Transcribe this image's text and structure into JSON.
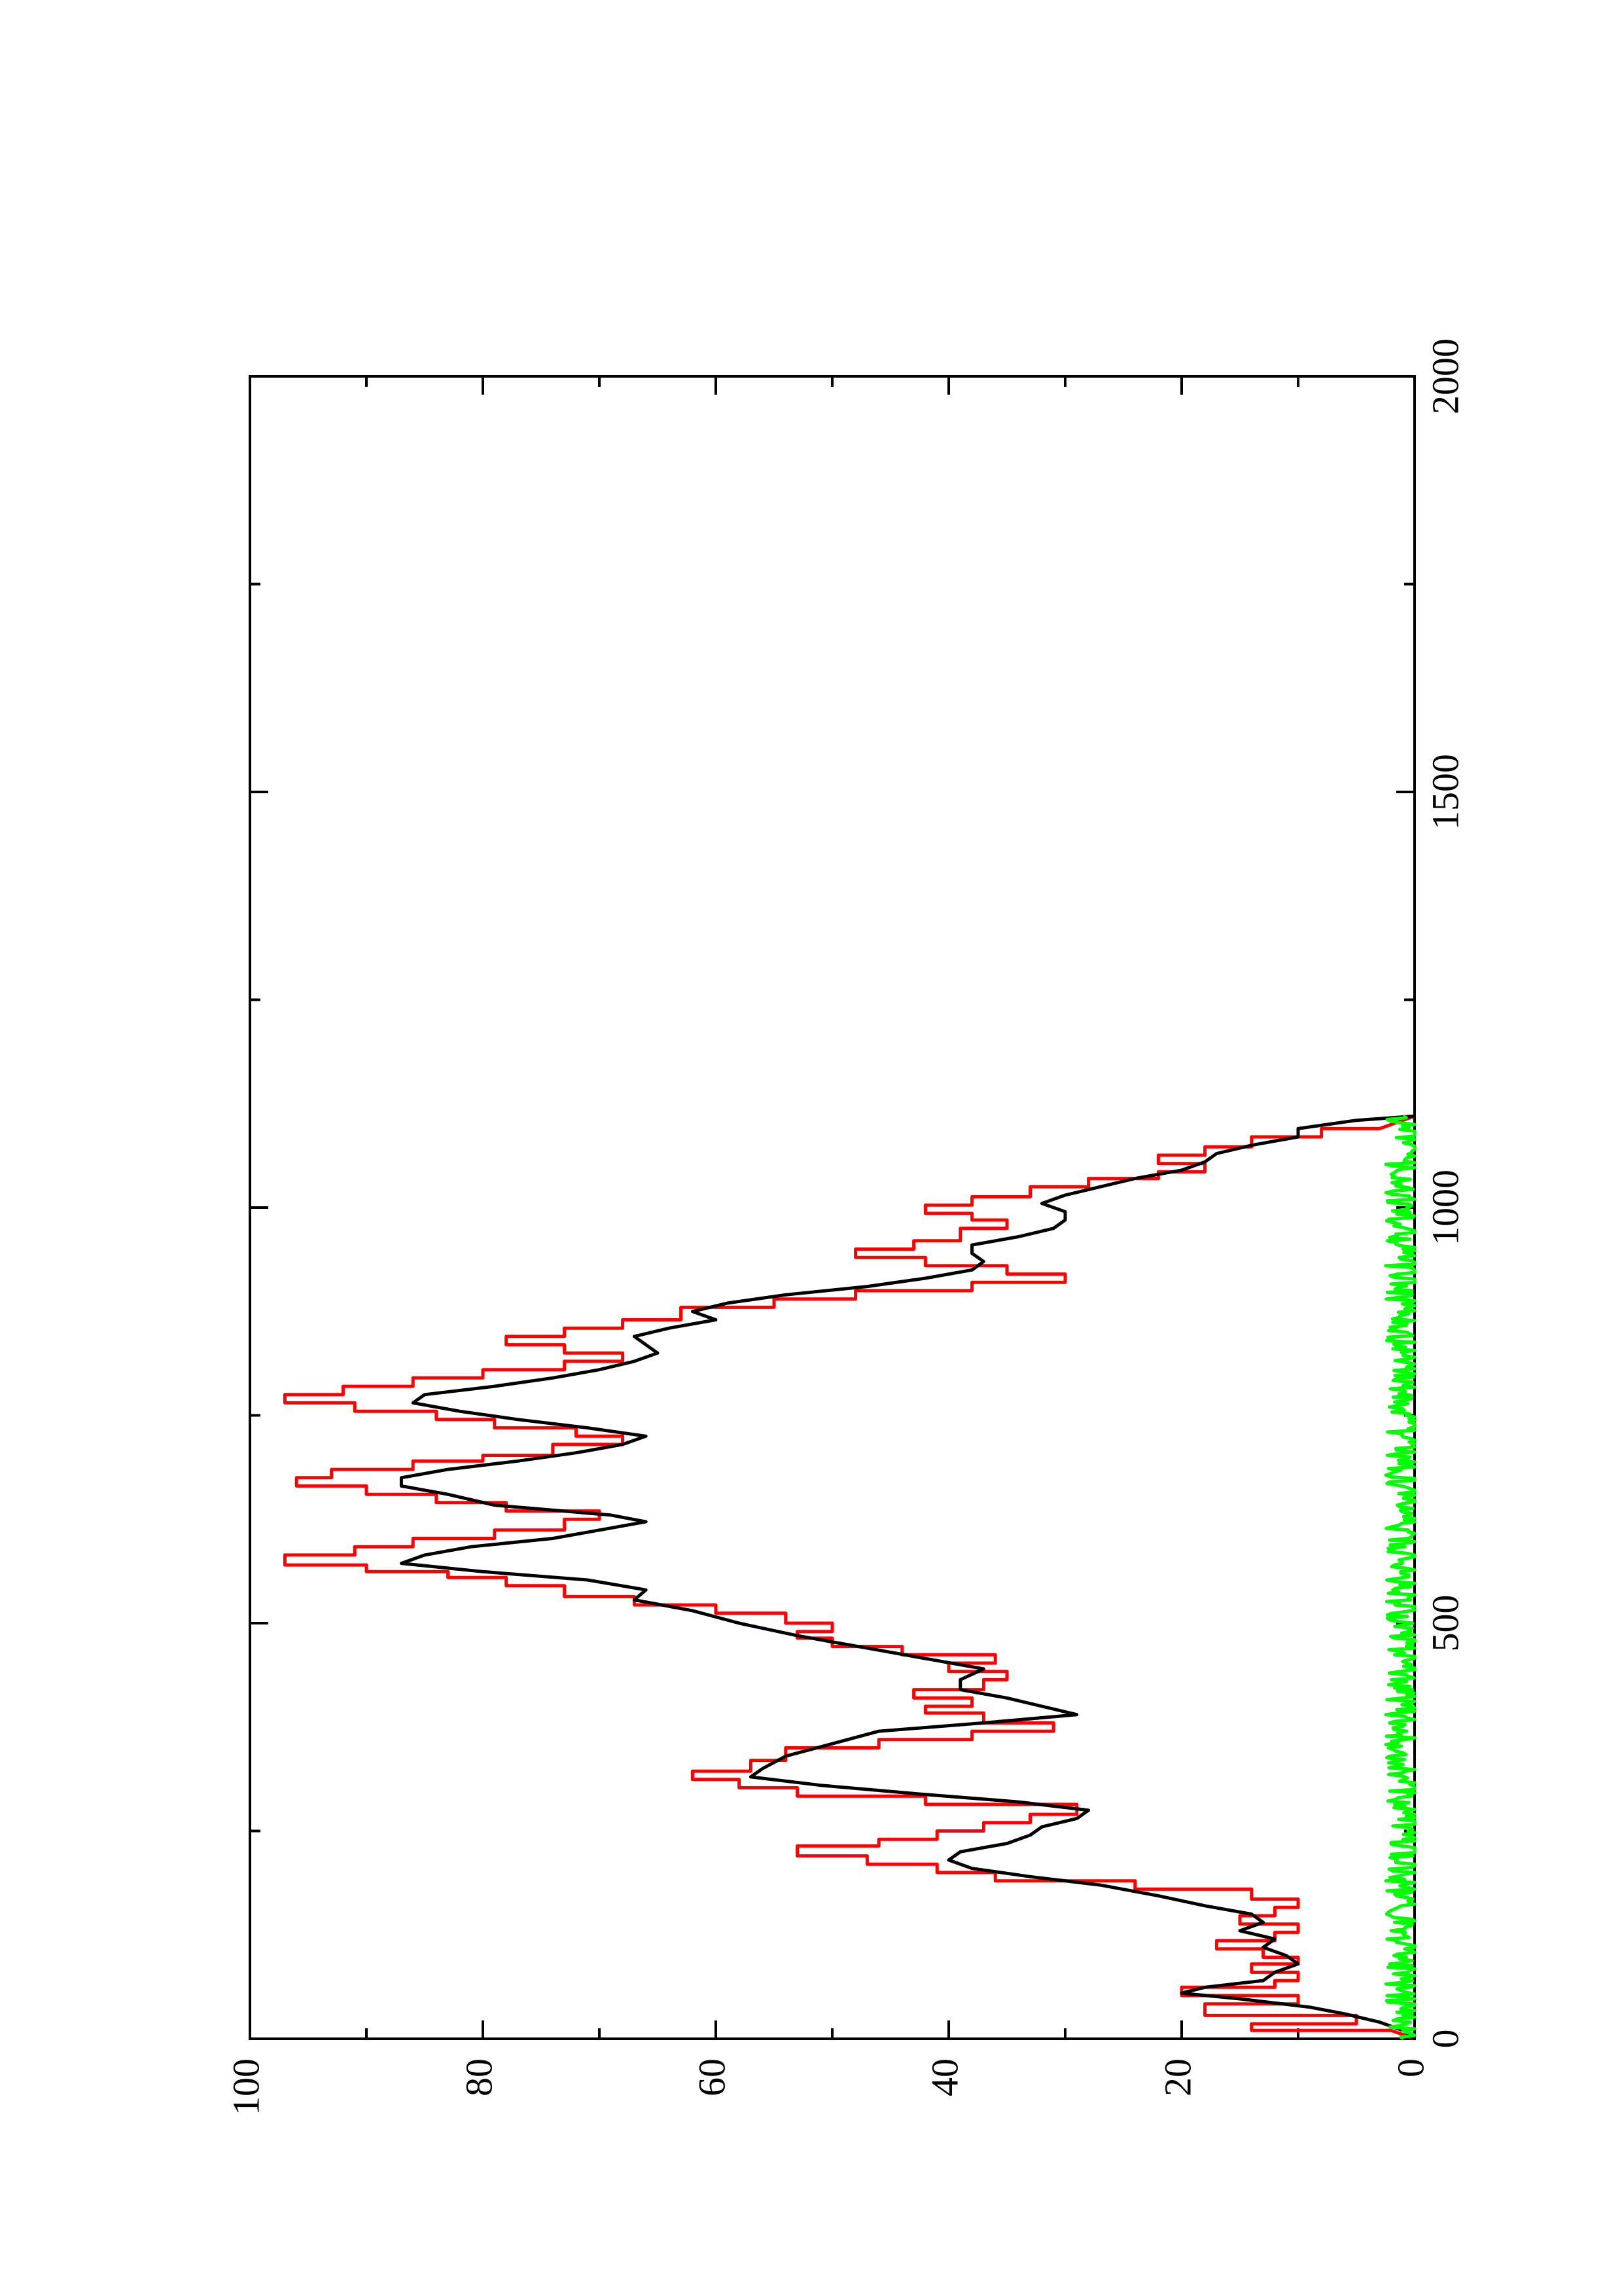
{
  "chart_data": {
    "type": "line",
    "orientation": "rotated-90-clockwise",
    "xlim": [
      0,
      2000
    ],
    "ylim": [
      0,
      100
    ],
    "x_ticks": [
      0,
      500,
      1000,
      1500,
      2000
    ],
    "x_tick_labels": [
      "0",
      "500",
      "1000",
      "1500",
      "2000"
    ],
    "y_ticks": [
      0,
      20,
      40,
      60,
      80,
      100
    ],
    "y_tick_labels": [
      "0",
      "20",
      "40",
      "60",
      "80",
      "100"
    ],
    "grid": false,
    "legend": "none",
    "series": [
      {
        "color": "#ff0000",
        "points": [
          [
            0,
            0
          ],
          [
            10,
            2
          ],
          [
            10,
            14
          ],
          [
            18,
            14
          ],
          [
            18,
            5
          ],
          [
            28,
            5
          ],
          [
            28,
            18
          ],
          [
            42,
            18
          ],
          [
            42,
            10
          ],
          [
            52,
            10
          ],
          [
            52,
            20
          ],
          [
            62,
            20
          ],
          [
            62,
            12
          ],
          [
            70,
            12
          ],
          [
            70,
            10
          ],
          [
            80,
            10
          ],
          [
            80,
            14
          ],
          [
            90,
            14
          ],
          [
            90,
            10
          ],
          [
            98,
            10
          ],
          [
            98,
            13
          ],
          [
            108,
            13
          ],
          [
            108,
            17
          ],
          [
            118,
            17
          ],
          [
            118,
            12
          ],
          [
            128,
            12
          ],
          [
            128,
            10
          ],
          [
            138,
            10
          ],
          [
            138,
            15
          ],
          [
            148,
            15
          ],
          [
            148,
            12
          ],
          [
            158,
            12
          ],
          [
            158,
            10
          ],
          [
            168,
            10
          ],
          [
            168,
            14
          ],
          [
            180,
            14
          ],
          [
            180,
            24
          ],
          [
            190,
            24
          ],
          [
            190,
            36
          ],
          [
            200,
            36
          ],
          [
            200,
            41
          ],
          [
            210,
            41
          ],
          [
            210,
            47
          ],
          [
            220,
            47
          ],
          [
            220,
            53
          ],
          [
            232,
            53
          ],
          [
            232,
            46
          ],
          [
            240,
            46
          ],
          [
            240,
            41
          ],
          [
            250,
            41
          ],
          [
            250,
            37
          ],
          [
            260,
            37
          ],
          [
            260,
            33
          ],
          [
            270,
            33
          ],
          [
            270,
            29
          ],
          [
            282,
            29
          ],
          [
            282,
            42
          ],
          [
            292,
            42
          ],
          [
            292,
            53
          ],
          [
            302,
            53
          ],
          [
            302,
            58
          ],
          [
            312,
            58
          ],
          [
            312,
            62
          ],
          [
            322,
            62
          ],
          [
            322,
            57
          ],
          [
            335,
            57
          ],
          [
            335,
            54
          ],
          [
            350,
            54
          ],
          [
            350,
            46
          ],
          [
            360,
            46
          ],
          [
            360,
            38
          ],
          [
            370,
            38
          ],
          [
            370,
            31
          ],
          [
            380,
            31
          ],
          [
            380,
            37
          ],
          [
            392,
            37
          ],
          [
            392,
            42
          ],
          [
            400,
            42
          ],
          [
            400,
            38
          ],
          [
            410,
            38
          ],
          [
            410,
            43
          ],
          [
            420,
            43
          ],
          [
            420,
            37
          ],
          [
            432,
            37
          ],
          [
            432,
            35
          ],
          [
            442,
            35
          ],
          [
            442,
            40
          ],
          [
            452,
            40
          ],
          [
            452,
            36
          ],
          [
            462,
            36
          ],
          [
            462,
            44
          ],
          [
            472,
            44
          ],
          [
            472,
            50
          ],
          [
            482,
            50
          ],
          [
            482,
            53
          ],
          [
            490,
            53
          ],
          [
            490,
            50
          ],
          [
            500,
            50
          ],
          [
            500,
            54
          ],
          [
            512,
            54
          ],
          [
            512,
            60
          ],
          [
            522,
            60
          ],
          [
            522,
            67
          ],
          [
            532,
            67
          ],
          [
            532,
            73
          ],
          [
            545,
            73
          ],
          [
            545,
            78
          ],
          [
            555,
            78
          ],
          [
            555,
            83
          ],
          [
            562,
            83
          ],
          [
            562,
            90
          ],
          [
            570,
            90
          ],
          [
            570,
            97
          ],
          [
            582,
            97
          ],
          [
            582,
            91
          ],
          [
            592,
            91
          ],
          [
            592,
            86
          ],
          [
            602,
            86
          ],
          [
            602,
            79
          ],
          [
            612,
            79
          ],
          [
            612,
            73
          ],
          [
            625,
            73
          ],
          [
            625,
            70
          ],
          [
            635,
            70
          ],
          [
            635,
            78
          ],
          [
            645,
            78
          ],
          [
            645,
            84
          ],
          [
            655,
            84
          ],
          [
            655,
            90
          ],
          [
            665,
            90
          ],
          [
            665,
            96
          ],
          [
            675,
            96
          ],
          [
            675,
            93
          ],
          [
            685,
            93
          ],
          [
            685,
            86
          ],
          [
            695,
            86
          ],
          [
            695,
            80
          ],
          [
            702,
            80
          ],
          [
            702,
            74
          ],
          [
            715,
            74
          ],
          [
            715,
            68
          ],
          [
            725,
            68
          ],
          [
            725,
            72
          ],
          [
            735,
            72
          ],
          [
            735,
            79
          ],
          [
            745,
            79
          ],
          [
            745,
            84
          ],
          [
            755,
            84
          ],
          [
            755,
            91
          ],
          [
            765,
            91
          ],
          [
            765,
            97
          ],
          [
            775,
            97
          ],
          [
            775,
            92
          ],
          [
            785,
            92
          ],
          [
            785,
            86
          ],
          [
            795,
            86
          ],
          [
            795,
            80
          ],
          [
            805,
            80
          ],
          [
            805,
            73
          ],
          [
            815,
            73
          ],
          [
            815,
            68
          ],
          [
            825,
            68
          ],
          [
            825,
            73
          ],
          [
            835,
            73
          ],
          [
            835,
            78
          ],
          [
            845,
            78
          ],
          [
            845,
            73
          ],
          [
            855,
            73
          ],
          [
            855,
            68
          ],
          [
            865,
            68
          ],
          [
            865,
            63
          ],
          [
            880,
            63
          ],
          [
            880,
            55
          ],
          [
            890,
            55
          ],
          [
            890,
            48
          ],
          [
            900,
            48
          ],
          [
            900,
            38
          ],
          [
            910,
            38
          ],
          [
            910,
            30
          ],
          [
            920,
            30
          ],
          [
            920,
            35
          ],
          [
            930,
            35
          ],
          [
            930,
            42
          ],
          [
            940,
            42
          ],
          [
            940,
            48
          ],
          [
            950,
            48
          ],
          [
            950,
            43
          ],
          [
            960,
            43
          ],
          [
            960,
            39
          ],
          [
            975,
            39
          ],
          [
            975,
            35
          ],
          [
            985,
            35
          ],
          [
            985,
            38
          ],
          [
            993,
            38
          ],
          [
            993,
            42
          ],
          [
            1003,
            42
          ],
          [
            1003,
            38
          ],
          [
            1013,
            38
          ],
          [
            1013,
            33
          ],
          [
            1025,
            33
          ],
          [
            1025,
            28
          ],
          [
            1035,
            28
          ],
          [
            1035,
            22
          ],
          [
            1043,
            22
          ],
          [
            1043,
            18
          ],
          [
            1053,
            18
          ],
          [
            1053,
            22
          ],
          [
            1063,
            22
          ],
          [
            1063,
            18
          ],
          [
            1073,
            18
          ],
          [
            1073,
            14
          ],
          [
            1085,
            14
          ],
          [
            1085,
            8
          ],
          [
            1095,
            8
          ],
          [
            1095,
            3
          ],
          [
            1110,
            0
          ]
        ]
      },
      {
        "color": "#000000",
        "points": [
          [
            0,
            0
          ],
          [
            10,
            1
          ],
          [
            20,
            3
          ],
          [
            30,
            6
          ],
          [
            38,
            9
          ],
          [
            48,
            15
          ],
          [
            55,
            20
          ],
          [
            62,
            18
          ],
          [
            70,
            13
          ],
          [
            80,
            12
          ],
          [
            90,
            10
          ],
          [
            100,
            11
          ],
          [
            110,
            13
          ],
          [
            120,
            12
          ],
          [
            130,
            15
          ],
          [
            140,
            13
          ],
          [
            150,
            14
          ],
          [
            160,
            18
          ],
          [
            172,
            22
          ],
          [
            185,
            27
          ],
          [
            195,
            33
          ],
          [
            205,
            38
          ],
          [
            215,
            40
          ],
          [
            225,
            39
          ],
          [
            235,
            35
          ],
          [
            245,
            33
          ],
          [
            255,
            32
          ],
          [
            265,
            29
          ],
          [
            275,
            28
          ],
          [
            285,
            34
          ],
          [
            295,
            43
          ],
          [
            305,
            51
          ],
          [
            315,
            57
          ],
          [
            325,
            56
          ],
          [
            340,
            54
          ],
          [
            355,
            50
          ],
          [
            370,
            46
          ],
          [
            380,
            37
          ],
          [
            390,
            29
          ],
          [
            400,
            32
          ],
          [
            410,
            35
          ],
          [
            420,
            39
          ],
          [
            432,
            39
          ],
          [
            445,
            37
          ],
          [
            455,
            41
          ],
          [
            470,
            47
          ],
          [
            485,
            53
          ],
          [
            500,
            58
          ],
          [
            515,
            62
          ],
          [
            528,
            67
          ],
          [
            540,
            66
          ],
          [
            552,
            71
          ],
          [
            562,
            80
          ],
          [
            572,
            87
          ],
          [
            582,
            85
          ],
          [
            592,
            81
          ],
          [
            602,
            74
          ],
          [
            612,
            70
          ],
          [
            622,
            66
          ],
          [
            630,
            69
          ],
          [
            642,
            79
          ],
          [
            655,
            83
          ],
          [
            665,
            87
          ],
          [
            675,
            87
          ],
          [
            685,
            83
          ],
          [
            695,
            77
          ],
          [
            705,
            72
          ],
          [
            715,
            68
          ],
          [
            725,
            66
          ],
          [
            735,
            71
          ],
          [
            745,
            77
          ],
          [
            755,
            82
          ],
          [
            765,
            86
          ],
          [
            775,
            85
          ],
          [
            785,
            79
          ],
          [
            795,
            74
          ],
          [
            805,
            70
          ],
          [
            815,
            67
          ],
          [
            825,
            65
          ],
          [
            835,
            66
          ],
          [
            845,
            67
          ],
          [
            855,
            64
          ],
          [
            865,
            60
          ],
          [
            875,
            62
          ],
          [
            885,
            59
          ],
          [
            895,
            54
          ],
          [
            905,
            47
          ],
          [
            915,
            42
          ],
          [
            925,
            38
          ],
          [
            935,
            37
          ],
          [
            945,
            38
          ],
          [
            955,
            38
          ],
          [
            965,
            34
          ],
          [
            975,
            31
          ],
          [
            985,
            30
          ],
          [
            995,
            30
          ],
          [
            1005,
            32
          ],
          [
            1015,
            30
          ],
          [
            1025,
            27
          ],
          [
            1035,
            24
          ],
          [
            1045,
            20
          ],
          [
            1055,
            18
          ],
          [
            1065,
            17
          ],
          [
            1075,
            14
          ],
          [
            1085,
            10
          ],
          [
            1095,
            10
          ],
          [
            1105,
            5
          ],
          [
            1110,
            0
          ]
        ]
      },
      {
        "color": "#00ff00",
        "x_range": [
          0,
          1110
        ],
        "baseline": 1,
        "amplitude": 1.5
      }
    ]
  }
}
